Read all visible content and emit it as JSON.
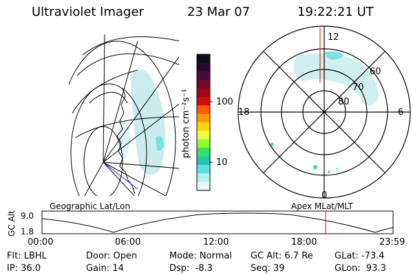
{
  "header": {
    "instrument": "Ultraviolet Imager",
    "date": "23 Mar 07",
    "time": "19:22:21 UT"
  },
  "colorbar": {
    "unit_label": "photon cm⁻²s⁻¹",
    "ticks": [
      "100",
      "10"
    ],
    "colors": [
      "#101018",
      "#2a0a2a",
      "#4a0a3a",
      "#700a28",
      "#a00a14",
      "#d00a0a",
      "#ff5a00",
      "#ff9a00",
      "#ffd400",
      "#e8ff40",
      "#8cff30",
      "#30e070",
      "#20c8b0",
      "#60e0e0",
      "#b8f0f0",
      "#e8f6f6"
    ]
  },
  "polar_plot": {
    "mlt_labels": [
      "12",
      "18",
      "6",
      "0"
    ],
    "lat_labels": [
      "60",
      "70",
      "80"
    ]
  },
  "timeline": {
    "left_title": "Geographic Lat/Lon",
    "right_title": "Apex MLat/MLT",
    "axis_label": "GC Alt",
    "y_labels": [
      "9.0",
      "1.8"
    ],
    "x_ticks": [
      "00:00",
      "06:00",
      "12:00",
      "18:00",
      "23:59"
    ],
    "current_time_fraction": 0.808,
    "marker_color": "#dd0000"
  },
  "status": {
    "filter": "Flt: LBHL",
    "ip": "IP: 36.0",
    "door": "Door: Open",
    "gain": "Gain: 14",
    "mode": "Mode: Normal",
    "dsp": "Dsp:  -8.3",
    "gc_alt": "GC Alt: 6.7 Re",
    "seq": "Seq: 39",
    "glat": "GLat: -73.4",
    "glon": "GLon:  93.3"
  }
}
